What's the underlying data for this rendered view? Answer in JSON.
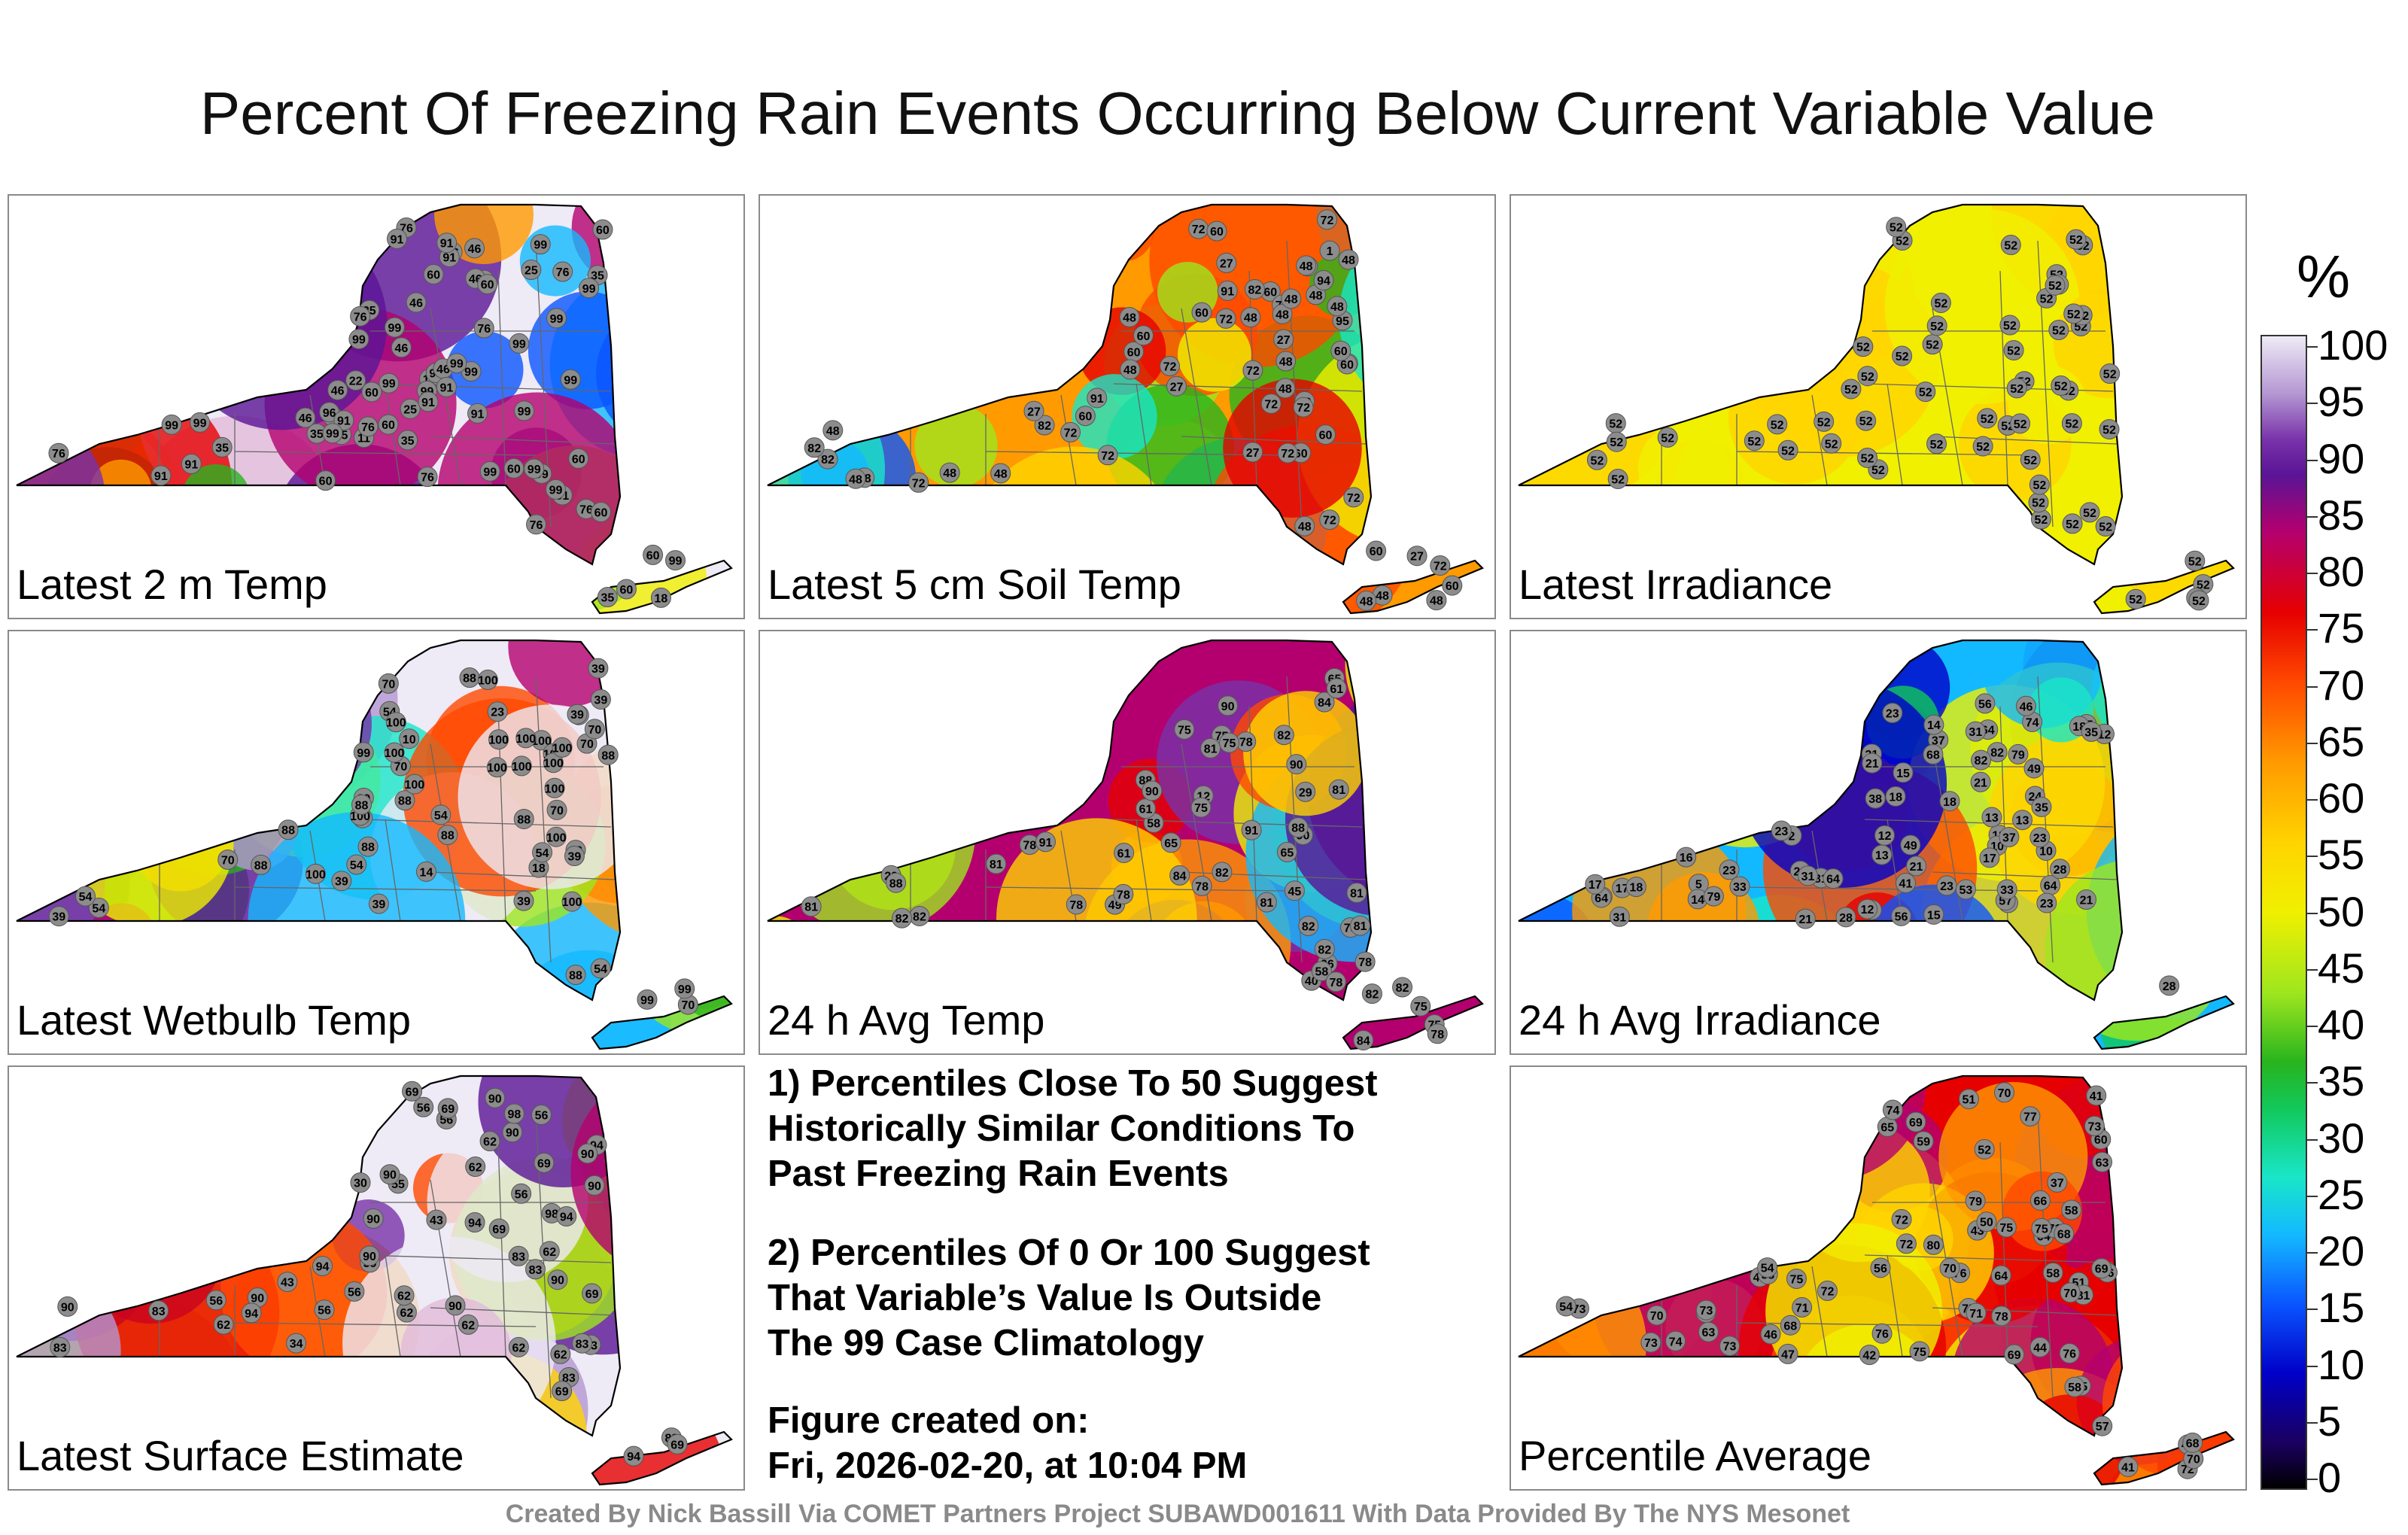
{
  "title": "Percent Of Freezing Rain Events Occurring Below Current Variable Value",
  "panels": [
    {
      "label": "Latest 2 m Temp",
      "values": [
        "11",
        "14",
        "18",
        "46",
        "25",
        "22",
        "25",
        "18",
        "35",
        "76",
        "46",
        "99",
        "99",
        "99",
        "96",
        "46",
        "25",
        "35",
        "60",
        "99",
        "76",
        "99",
        "91",
        "35",
        "76",
        "46",
        "22",
        "60",
        "76",
        "99",
        "91",
        "99",
        "76",
        "60",
        "46",
        "60",
        "99",
        "91",
        "99",
        "99",
        "76",
        "46",
        "35",
        "60",
        "99",
        "99",
        "91",
        "60",
        "99",
        "91",
        "35",
        "35",
        "76",
        "60",
        "46",
        "60",
        "91",
        "99",
        "99",
        "46",
        "76",
        "91",
        "60",
        "99",
        "60",
        "91",
        "99",
        "60",
        "76",
        "91",
        "99",
        "91",
        "99",
        "99",
        "99",
        "99"
      ],
      "colors": [
        "#eeeaf6",
        "#5a1496",
        "#7832aa",
        "#b4006e",
        "#e60000",
        "#ff9a00",
        "#f0f000",
        "#9ee61e",
        "#28b41e",
        "#13b9ff",
        "#0a55ff"
      ]
    },
    {
      "label": "Latest 5 cm Soil Temp",
      "values": [
        "72",
        "60",
        "72",
        "60",
        "72",
        "27",
        "48",
        "72",
        "95",
        "48",
        "60",
        "48",
        "82",
        "91",
        "27",
        "60",
        "72",
        "72",
        "48",
        "48",
        "91",
        "1",
        "48",
        "72",
        "60",
        "27",
        "48",
        "72",
        "60",
        "82",
        "48",
        "48",
        "27",
        "48",
        "72",
        "60",
        "48",
        "72",
        "48",
        "60",
        "72",
        "48",
        "60",
        "82",
        "27",
        "48",
        "72",
        "60",
        "48",
        "82",
        "48",
        "60",
        "72",
        "94",
        "48",
        "60",
        "48",
        "72",
        "48",
        "27",
        "60",
        "48",
        "48",
        "60",
        "72"
      ],
      "colors": [
        "#ff9a00",
        "#f0f000",
        "#ffd400",
        "#9ee61e",
        "#28b41e",
        "#ff4800",
        "#e60000",
        "#19e6c8",
        "#0a55ff",
        "#13b9ff"
      ]
    },
    {
      "label": "Latest Irradiance",
      "values": [
        "52",
        "52",
        "52",
        "52",
        "52",
        "52",
        "52",
        "52",
        "52",
        "52",
        "52",
        "52",
        "52",
        "52",
        "52",
        "52",
        "52",
        "52",
        "52",
        "52",
        "52",
        "52",
        "52",
        "52",
        "52",
        "52",
        "52",
        "52",
        "52",
        "52",
        "52",
        "52",
        "52",
        "52",
        "52",
        "52",
        "52",
        "52",
        "52",
        "52",
        "52",
        "52",
        "52",
        "52",
        "52",
        "52",
        "52",
        "52",
        "52",
        "52",
        "52",
        "52",
        "52",
        "52",
        "52",
        "52",
        "52",
        "52",
        "52",
        "52"
      ],
      "colors": [
        "#f0f000",
        "#ffd400"
      ]
    },
    {
      "label": "Latest Wetbulb Temp",
      "values": [
        "10",
        "14",
        "18",
        "54",
        "23",
        "39",
        "54",
        "39",
        "88",
        "39",
        "100",
        "54",
        "88",
        "23",
        "70",
        "100",
        "39",
        "54",
        "100",
        "88",
        "100",
        "39",
        "70",
        "100",
        "54",
        "99",
        "39",
        "88",
        "100",
        "70",
        "100",
        "54",
        "70",
        "88",
        "100",
        "39",
        "100",
        "99",
        "88",
        "70",
        "54",
        "100",
        "88",
        "39",
        "100",
        "99",
        "100",
        "100",
        "88",
        "70",
        "100",
        "39",
        "54",
        "88",
        "100",
        "99",
        "70",
        "88",
        "100",
        "100"
      ],
      "colors": [
        "#eeeaf6",
        "#b496d2",
        "#7832aa",
        "#5a1496",
        "#b4006e",
        "#ff4800",
        "#ff9a00",
        "#f0f000",
        "#9ee61e",
        "#28b41e",
        "#19e6c8",
        "#13b9ff"
      ]
    },
    {
      "label": "24 h Avg Temp",
      "values": [
        "29",
        "36",
        "12",
        "29",
        "45",
        "82",
        "65",
        "49",
        "40",
        "78",
        "81",
        "61",
        "75",
        "58",
        "75",
        "84",
        "82",
        "81",
        "75",
        "65",
        "78",
        "90",
        "88",
        "82",
        "78",
        "61",
        "75",
        "58",
        "91",
        "90",
        "88",
        "84",
        "78",
        "75",
        "61",
        "65",
        "90",
        "82",
        "81",
        "75",
        "78",
        "81",
        "91",
        "90",
        "88",
        "84",
        "82",
        "78",
        "81",
        "81",
        "75",
        "78",
        "82",
        "81",
        "78",
        "82",
        "82"
      ],
      "colors": [
        "#b4006e",
        "#e60000",
        "#ff4800",
        "#5a1496",
        "#7832aa",
        "#ff9a00",
        "#ffd400",
        "#f0f000",
        "#9ee61e",
        "#13b9ff"
      ]
    },
    {
      "label": "24 h Avg Irradiance",
      "values": [
        "56",
        "81",
        "81",
        "74",
        "37",
        "41",
        "64",
        "49",
        "31",
        "28",
        "46",
        "15",
        "38",
        "23",
        "13",
        "12",
        "13",
        "5",
        "6",
        "49",
        "64",
        "57",
        "28",
        "23",
        "17",
        "15",
        "13",
        "10",
        "2",
        "14",
        "24",
        "79",
        "68",
        "79",
        "35",
        "13",
        "18",
        "12",
        "21",
        "10",
        "21",
        "64",
        "53",
        "56",
        "46",
        "37",
        "18",
        "15",
        "18",
        "23",
        "82",
        "82",
        "64",
        "21",
        "31",
        "31",
        "21",
        "16",
        "17",
        "33",
        "23",
        "28",
        "14",
        "33",
        "28",
        "21",
        "23",
        "17",
        "12",
        "18",
        "35",
        "21",
        "23"
      ],
      "colors": [
        "#13b9ff",
        "#0a55ff",
        "#0000c8",
        "#19e6c8",
        "#12c85a",
        "#9ee61e",
        "#f0f000",
        "#ffd400",
        "#ff9a00",
        "#ff4800",
        "#e60000"
      ]
    },
    {
      "label": "Latest Surface Estimate",
      "values": [
        "30",
        "33",
        "34",
        "56",
        "39",
        "43",
        "62",
        "56",
        "55",
        "94",
        "90",
        "43",
        "62",
        "56",
        "90",
        "83",
        "94",
        "69",
        "83",
        "62",
        "90",
        "83",
        "98",
        "94",
        "90",
        "69",
        "62",
        "56",
        "62",
        "56",
        "94",
        "83",
        "90",
        "69",
        "56",
        "62",
        "90",
        "83",
        "94",
        "90",
        "69",
        "62",
        "69",
        "56",
        "62",
        "83",
        "90",
        "69",
        "90",
        "83",
        "62",
        "69",
        "90",
        "98",
        "94",
        "90"
      ],
      "colors": [
        "#eeeaf6",
        "#b496d2",
        "#7832aa",
        "#5a1496",
        "#b4006e",
        "#e60000",
        "#ff4800",
        "#ff9a00",
        "#ffd400",
        "#f0f000",
        "#9ee61e"
      ]
    },
    {
      "label": "Percentile Average",
      "values": [
        "37",
        "41",
        "41",
        "46",
        "42",
        "43",
        "60",
        "73",
        "50",
        "73",
        "51",
        "45",
        "47",
        "75",
        "64",
        "73",
        "51",
        "49",
        "44",
        "46",
        "78",
        "81",
        "75",
        "69",
        "72",
        "74",
        "73",
        "58",
        "58",
        "76",
        "70",
        "80",
        "76",
        "71",
        "72",
        "69",
        "58",
        "59",
        "65",
        "76",
        "70",
        "73",
        "68",
        "63",
        "52",
        "54",
        "56",
        "76",
        "70",
        "71",
        "66",
        "68",
        "69",
        "63",
        "54",
        "57",
        "58",
        "75",
        "79",
        "70",
        "71",
        "64",
        "68",
        "72",
        "69",
        "75",
        "70",
        "77",
        "75",
        "72",
        "74"
      ],
      "colors": [
        "#e60000",
        "#ff4800",
        "#ff9a00",
        "#ffd400",
        "#f0f000",
        "#b4006e"
      ]
    }
  ],
  "notes": {
    "note1": [
      "1) Percentiles Close To 50 Suggest",
      "Historically Similar Conditions To",
      "Past Freezing Rain Events"
    ],
    "note2": [
      "2) Percentiles Of 0 Or 100 Suggest",
      "That Variable’s Value Is Outside",
      "The 99 Case Climatology"
    ],
    "created_label": "Figure created on:",
    "created_date": "Fri, 2026-02-20, at 10:04 PM"
  },
  "colorbar": {
    "unit": "%",
    "ticks": [
      "100",
      "95",
      "90",
      "85",
      "80",
      "75",
      "70",
      "65",
      "60",
      "55",
      "50",
      "45",
      "40",
      "35",
      "30",
      "25",
      "20",
      "15",
      "10",
      "5",
      "0"
    ],
    "max": 100,
    "min": 0
  },
  "footer": "Created By Nick Bassill Via COMET Partners Project SUBAWD001611 With Data Provided By The NYS Mesonet"
}
